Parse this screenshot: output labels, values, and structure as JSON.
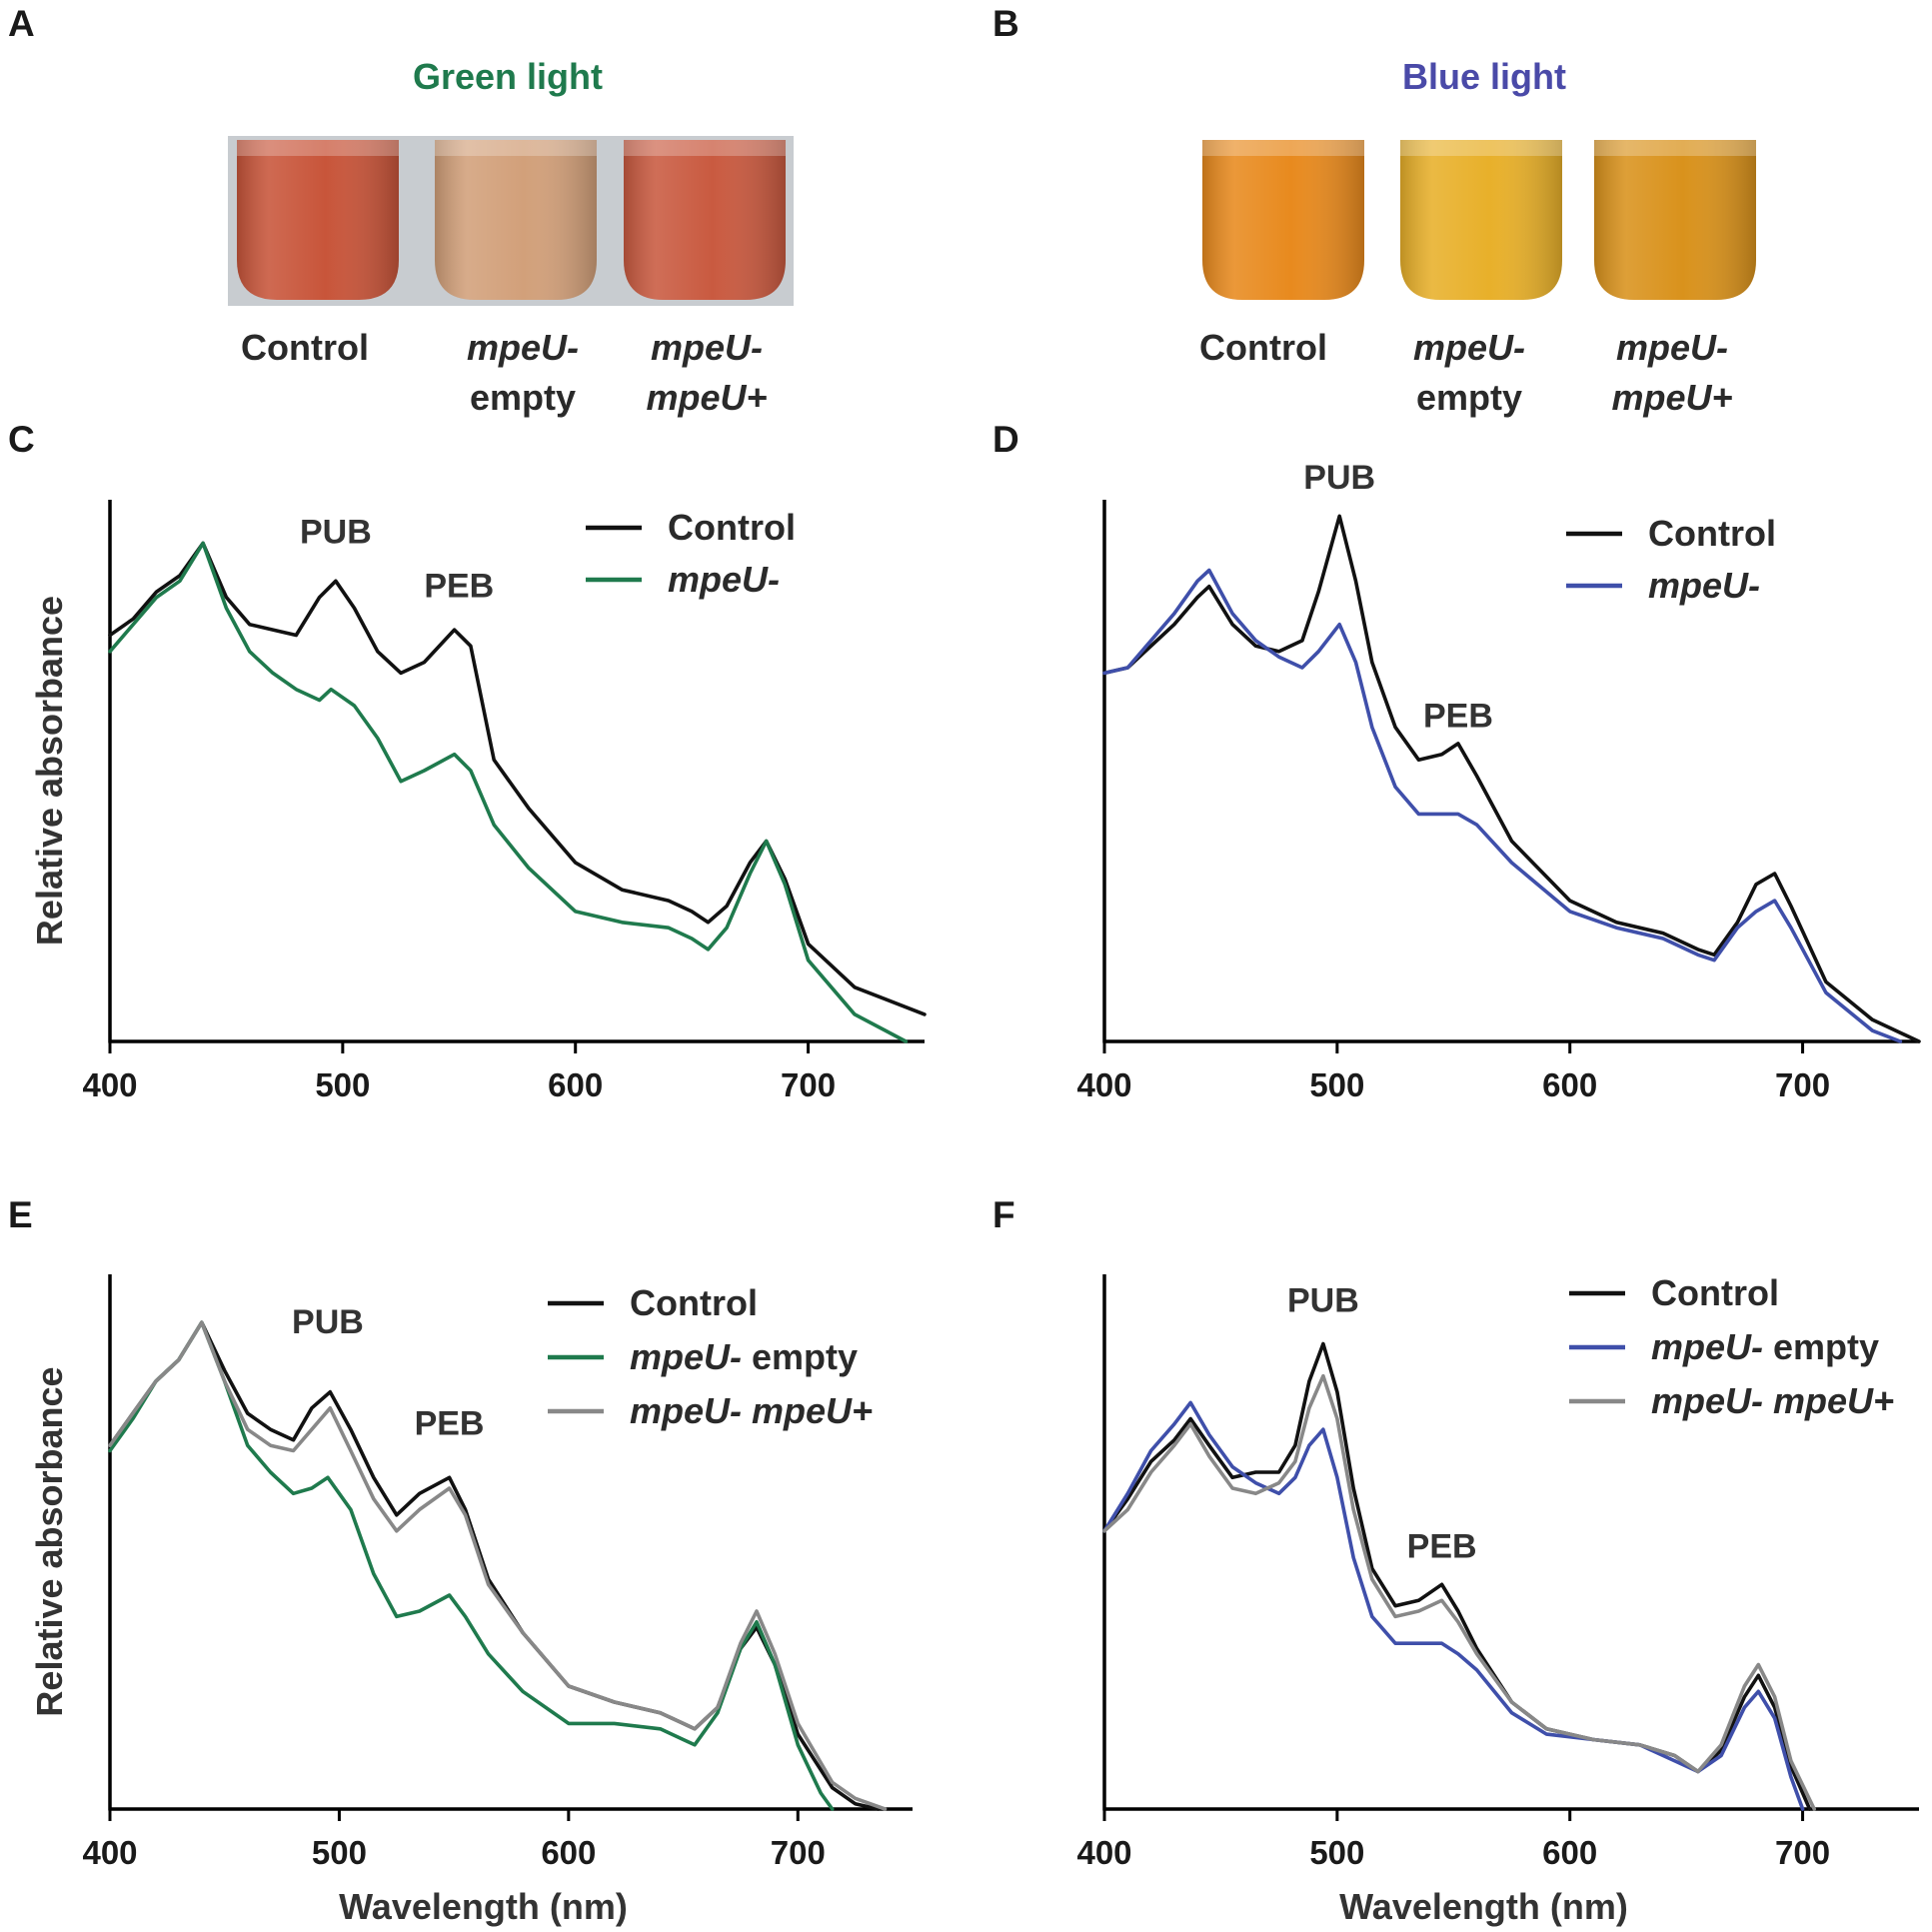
{
  "colors": {
    "control": "#111111",
    "green_mutant": "#1f7a4d",
    "blue_mutant": "#3f4faa",
    "complemented": "#888888",
    "green_title": "#1f7a4d",
    "blue_title": "#4a4aa8",
    "photo_bg": "#c8ccd0",
    "green_vial_control": "#c8553a",
    "green_vial_empty": "#d2a07a",
    "green_vial_comp": "#c95a40",
    "blue_vial_control": "#e88a1e",
    "blue_vial_empty": "#e8b02a",
    "blue_vial_comp": "#d9921c"
  },
  "photos": {
    "A": {
      "letter": "A",
      "title": "Green light",
      "captions": [
        {
          "line1": "Control",
          "line2": "",
          "line1_italic": false
        },
        {
          "line1": "mpeU-",
          "line2": "empty",
          "line1_italic": true
        },
        {
          "line1": "mpeU-",
          "line2": "mpeU+",
          "line1_italic": true
        }
      ]
    },
    "B": {
      "letter": "B",
      "title": "Blue light",
      "captions": [
        {
          "line1": "Control",
          "line2": "",
          "line1_italic": false
        },
        {
          "line1": "mpeU-",
          "line2": "empty",
          "line1_italic": true
        },
        {
          "line1": "mpeU-",
          "line2": "mpeU+",
          "line1_italic": true
        }
      ]
    }
  },
  "chart_data": [
    {
      "panel": "C",
      "type": "line",
      "xlabel": "",
      "ylabel": "Relative absorbance",
      "xlim": [
        400,
        750
      ],
      "ylim": [
        0,
        1.0
      ],
      "xticks": [
        400,
        500,
        600,
        700
      ],
      "annotations": [
        {
          "text": "PUB",
          "x": 497,
          "y": 0.92
        },
        {
          "text": "PEB",
          "x": 550,
          "y": 0.82
        }
      ],
      "legend": {
        "position": "top-right",
        "entries": [
          {
            "name": "Control",
            "name_italic": "",
            "name_rest": "Control",
            "color": "control"
          },
          {
            "name": "mpeU-",
            "name_italic": "mpeU-",
            "name_rest": "",
            "color": "green_mutant"
          }
        ]
      },
      "series": [
        {
          "name": "Control",
          "color": "control",
          "x": [
            400,
            410,
            420,
            430,
            440,
            450,
            460,
            470,
            480,
            490,
            497,
            505,
            515,
            525,
            535,
            548,
            555,
            565,
            580,
            600,
            620,
            640,
            650,
            657,
            665,
            675,
            682,
            690,
            700,
            720,
            750
          ],
          "y": [
            0.75,
            0.78,
            0.83,
            0.86,
            0.92,
            0.82,
            0.77,
            0.76,
            0.75,
            0.82,
            0.85,
            0.8,
            0.72,
            0.68,
            0.7,
            0.76,
            0.73,
            0.52,
            0.43,
            0.33,
            0.28,
            0.26,
            0.24,
            0.22,
            0.25,
            0.33,
            0.37,
            0.3,
            0.18,
            0.1,
            0.05
          ]
        },
        {
          "name": "mpeU-",
          "color": "green_mutant",
          "x": [
            400,
            410,
            420,
            430,
            440,
            450,
            460,
            470,
            480,
            490,
            495,
            505,
            515,
            525,
            535,
            548,
            555,
            565,
            580,
            600,
            620,
            640,
            650,
            657,
            665,
            675,
            682,
            690,
            700,
            720,
            742
          ],
          "y": [
            0.72,
            0.77,
            0.82,
            0.85,
            0.92,
            0.8,
            0.72,
            0.68,
            0.65,
            0.63,
            0.65,
            0.62,
            0.56,
            0.48,
            0.5,
            0.53,
            0.5,
            0.4,
            0.32,
            0.24,
            0.22,
            0.21,
            0.19,
            0.17,
            0.21,
            0.31,
            0.37,
            0.29,
            0.15,
            0.05,
            0.0
          ]
        }
      ]
    },
    {
      "panel": "D",
      "type": "line",
      "xlabel": "",
      "ylabel": "",
      "xlim": [
        400,
        750
      ],
      "ylim": [
        0,
        1.0
      ],
      "xticks": [
        400,
        500,
        600,
        700
      ],
      "annotations": [
        {
          "text": "PUB",
          "x": 501,
          "y": 1.02
        },
        {
          "text": "PEB",
          "x": 552,
          "y": 0.58
        }
      ],
      "legend": {
        "position": "top-right",
        "entries": [
          {
            "name": "Control",
            "name_italic": "",
            "name_rest": "Control",
            "color": "control"
          },
          {
            "name": "mpeU-",
            "name_italic": "mpeU-",
            "name_rest": "",
            "color": "blue_mutant"
          }
        ]
      },
      "series": [
        {
          "name": "Control",
          "color": "control",
          "x": [
            400,
            410,
            420,
            430,
            440,
            445,
            455,
            465,
            475,
            485,
            492,
            501,
            508,
            515,
            525,
            535,
            545,
            552,
            560,
            575,
            600,
            620,
            640,
            655,
            662,
            672,
            680,
            688,
            695,
            710,
            730,
            750
          ],
          "y": [
            0.68,
            0.69,
            0.73,
            0.77,
            0.82,
            0.84,
            0.77,
            0.73,
            0.72,
            0.74,
            0.83,
            0.97,
            0.85,
            0.7,
            0.58,
            0.52,
            0.53,
            0.55,
            0.49,
            0.37,
            0.26,
            0.22,
            0.2,
            0.17,
            0.16,
            0.22,
            0.29,
            0.31,
            0.25,
            0.11,
            0.04,
            0.0
          ]
        },
        {
          "name": "mpeU-",
          "color": "blue_mutant",
          "x": [
            400,
            410,
            420,
            430,
            440,
            445,
            455,
            465,
            475,
            485,
            492,
            501,
            508,
            515,
            525,
            535,
            545,
            552,
            560,
            575,
            600,
            620,
            640,
            655,
            662,
            672,
            680,
            688,
            695,
            710,
            730,
            742
          ],
          "y": [
            0.68,
            0.69,
            0.74,
            0.79,
            0.85,
            0.87,
            0.79,
            0.74,
            0.71,
            0.69,
            0.72,
            0.77,
            0.7,
            0.58,
            0.47,
            0.42,
            0.42,
            0.42,
            0.4,
            0.33,
            0.24,
            0.21,
            0.19,
            0.16,
            0.15,
            0.21,
            0.24,
            0.26,
            0.21,
            0.09,
            0.02,
            0.0
          ]
        }
      ]
    },
    {
      "panel": "E",
      "type": "line",
      "xlabel": "Wavelength (nm)",
      "ylabel": "Relative absorbance",
      "xlim": [
        400,
        750
      ],
      "ylim": [
        0,
        1.0
      ],
      "xticks": [
        400,
        500,
        600,
        700
      ],
      "annotations": [
        {
          "text": "PUB",
          "x": 495,
          "y": 0.89
        },
        {
          "text": "PEB",
          "x": 548,
          "y": 0.7
        }
      ],
      "legend": {
        "position": "top-right",
        "entries": [
          {
            "name": "Control",
            "name_italic": "",
            "name_rest": "Control",
            "color": "control"
          },
          {
            "name": "mpeU- empty",
            "name_italic": "mpeU-",
            "name_rest": " empty",
            "color": "green_mutant"
          },
          {
            "name": "mpeU- mpeU+",
            "name_italic": "mpeU- mpeU+",
            "name_rest": "",
            "color": "complemented"
          }
        ]
      },
      "series": [
        {
          "name": "Control",
          "color": "control",
          "x": [
            400,
            410,
            420,
            430,
            440,
            450,
            460,
            470,
            480,
            488,
            496,
            505,
            515,
            525,
            535,
            548,
            555,
            565,
            580,
            600,
            620,
            640,
            650,
            655,
            665,
            675,
            682,
            690,
            700,
            715,
            725,
            735
          ],
          "y": [
            0.68,
            0.74,
            0.8,
            0.84,
            0.91,
            0.82,
            0.74,
            0.71,
            0.69,
            0.75,
            0.78,
            0.71,
            0.62,
            0.55,
            0.59,
            0.62,
            0.56,
            0.43,
            0.33,
            0.23,
            0.2,
            0.18,
            0.16,
            0.15,
            0.19,
            0.3,
            0.34,
            0.27,
            0.14,
            0.04,
            0.01,
            0.0
          ]
        },
        {
          "name": "mpeU- empty",
          "color": "green_mutant",
          "x": [
            400,
            410,
            420,
            430,
            440,
            450,
            460,
            470,
            480,
            488,
            495,
            505,
            515,
            525,
            535,
            548,
            555,
            565,
            580,
            600,
            620,
            640,
            650,
            655,
            665,
            675,
            682,
            690,
            700,
            710,
            715
          ],
          "y": [
            0.67,
            0.73,
            0.8,
            0.84,
            0.91,
            0.8,
            0.68,
            0.63,
            0.59,
            0.6,
            0.62,
            0.56,
            0.44,
            0.36,
            0.37,
            0.4,
            0.36,
            0.29,
            0.22,
            0.16,
            0.16,
            0.15,
            0.13,
            0.12,
            0.18,
            0.3,
            0.35,
            0.27,
            0.12,
            0.03,
            0.0
          ]
        },
        {
          "name": "mpeU- mpeU+",
          "color": "complemented",
          "x": [
            400,
            410,
            420,
            430,
            440,
            450,
            460,
            470,
            480,
            488,
            496,
            505,
            515,
            525,
            535,
            548,
            555,
            565,
            580,
            600,
            620,
            640,
            650,
            655,
            665,
            675,
            682,
            690,
            700,
            715,
            725,
            738
          ],
          "y": [
            0.68,
            0.74,
            0.8,
            0.84,
            0.91,
            0.8,
            0.71,
            0.68,
            0.67,
            0.71,
            0.75,
            0.67,
            0.58,
            0.52,
            0.56,
            0.6,
            0.55,
            0.42,
            0.33,
            0.23,
            0.2,
            0.18,
            0.16,
            0.15,
            0.19,
            0.31,
            0.37,
            0.29,
            0.16,
            0.05,
            0.02,
            0.0
          ]
        }
      ]
    },
    {
      "panel": "F",
      "type": "line",
      "xlabel": "Wavelength (nm)",
      "ylabel": "",
      "xlim": [
        400,
        750
      ],
      "ylim": [
        0,
        1.0
      ],
      "xticks": [
        400,
        500,
        600,
        700
      ],
      "annotations": [
        {
          "text": "PUB",
          "x": 494,
          "y": 0.93
        },
        {
          "text": "PEB",
          "x": 545,
          "y": 0.47
        }
      ],
      "legend": {
        "position": "top-right",
        "entries": [
          {
            "name": "Control",
            "name_italic": "",
            "name_rest": "Control",
            "color": "control"
          },
          {
            "name": "mpeU- empty",
            "name_italic": "mpeU-",
            "name_rest": " empty",
            "color": "blue_mutant"
          },
          {
            "name": "mpeU- mpeU+",
            "name_italic": "mpeU- mpeU+",
            "name_rest": "",
            "color": "complemented"
          }
        ]
      },
      "series": [
        {
          "name": "Control",
          "color": "control",
          "x": [
            400,
            410,
            420,
            430,
            437,
            445,
            455,
            465,
            475,
            482,
            488,
            494,
            500,
            507,
            515,
            525,
            535,
            545,
            552,
            560,
            575,
            590,
            610,
            630,
            645,
            655,
            665,
            675,
            681,
            688,
            695,
            703
          ],
          "y": [
            0.52,
            0.58,
            0.65,
            0.69,
            0.73,
            0.68,
            0.62,
            0.63,
            0.63,
            0.68,
            0.8,
            0.87,
            0.78,
            0.6,
            0.45,
            0.38,
            0.39,
            0.42,
            0.37,
            0.3,
            0.2,
            0.15,
            0.13,
            0.12,
            0.1,
            0.07,
            0.11,
            0.21,
            0.25,
            0.19,
            0.08,
            0.0
          ]
        },
        {
          "name": "mpeU- empty",
          "color": "blue_mutant",
          "x": [
            400,
            410,
            420,
            430,
            437,
            445,
            455,
            465,
            475,
            482,
            488,
            494,
            500,
            507,
            515,
            525,
            535,
            545,
            552,
            560,
            575,
            590,
            610,
            630,
            645,
            655,
            665,
            675,
            681,
            688,
            695,
            700
          ],
          "y": [
            0.52,
            0.59,
            0.67,
            0.72,
            0.76,
            0.7,
            0.64,
            0.61,
            0.59,
            0.62,
            0.68,
            0.71,
            0.62,
            0.47,
            0.36,
            0.31,
            0.31,
            0.31,
            0.29,
            0.26,
            0.18,
            0.14,
            0.13,
            0.12,
            0.09,
            0.07,
            0.1,
            0.19,
            0.22,
            0.17,
            0.06,
            0.0
          ]
        },
        {
          "name": "mpeU- mpeU+",
          "color": "complemented",
          "x": [
            400,
            410,
            420,
            430,
            437,
            445,
            455,
            465,
            475,
            482,
            488,
            494,
            500,
            507,
            515,
            525,
            535,
            545,
            552,
            560,
            575,
            590,
            610,
            630,
            645,
            655,
            665,
            675,
            681,
            688,
            695,
            705
          ],
          "y": [
            0.52,
            0.56,
            0.63,
            0.68,
            0.72,
            0.66,
            0.6,
            0.59,
            0.61,
            0.65,
            0.75,
            0.81,
            0.73,
            0.56,
            0.43,
            0.36,
            0.37,
            0.39,
            0.35,
            0.29,
            0.2,
            0.15,
            0.13,
            0.12,
            0.1,
            0.07,
            0.12,
            0.23,
            0.27,
            0.21,
            0.09,
            0.0
          ]
        }
      ]
    }
  ]
}
